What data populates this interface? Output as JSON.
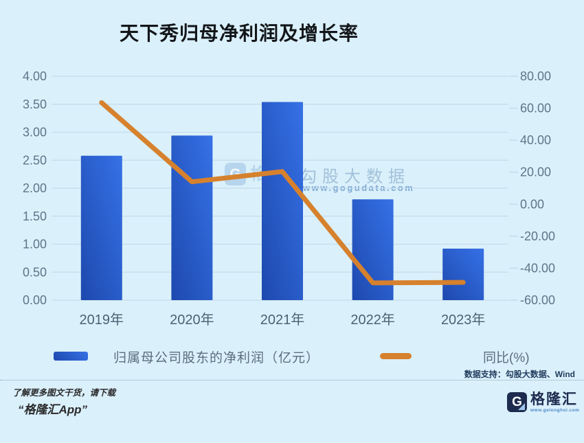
{
  "title": "天下秀归母净利润及增长率",
  "chart_data": {
    "type": "bar+line",
    "categories": [
      "2019年",
      "2020年",
      "2021年",
      "2022年",
      "2023年"
    ],
    "series": [
      {
        "name": "归属母公司股东的净利润（亿元）",
        "type": "bar",
        "axis": "left",
        "values": [
          2.58,
          2.94,
          3.54,
          1.8,
          0.92
        ]
      },
      {
        "name": "同比(%)",
        "type": "line",
        "axis": "right",
        "values": [
          63.5,
          14.0,
          20.4,
          -49.2,
          -48.9
        ]
      }
    ],
    "left_axis": {
      "min": 0,
      "max": 4,
      "tick_labels_bottom_up": [
        "0.00",
        "0.50",
        "1.00",
        "1.50",
        "2.00",
        "2.50",
        "3.00",
        "3.50",
        "4.00"
      ]
    },
    "right_axis": {
      "min": -60,
      "max": 80,
      "tick_labels_top_down": [
        "80.00",
        "60.00",
        "40.00",
        "20.00",
        "0.00",
        "-20.00",
        "-40.00",
        "-60.00"
      ]
    },
    "grid": true,
    "legend_position": "bottom",
    "title": "天下秀归母净利润及增长率"
  },
  "legend": {
    "bar_label": "归属母公司股东的净利润（亿元）",
    "line_label": "同比(%)"
  },
  "data_support": "数据支持：勾股大数据、Wind",
  "watermark": {
    "logo_letter": "G",
    "logo_text": "格隆汇",
    "brand": "勾股大数据",
    "url": "www.gogudata.com"
  },
  "footer": {
    "line1": "了解更多图文干货，请下载",
    "line2": "“格隆汇App”",
    "logo_letter": "G",
    "logo_text": "格隆汇",
    "logo_url": "www.gelonghui.com"
  },
  "colors": {
    "background": "#daf0fb",
    "gridline": "#c5dbeb",
    "bar_dark": "#1d49ae",
    "bar_light": "#3671e6",
    "line": "#d6812d",
    "y_label": "#5f7588",
    "x_label": "#4c6272"
  }
}
